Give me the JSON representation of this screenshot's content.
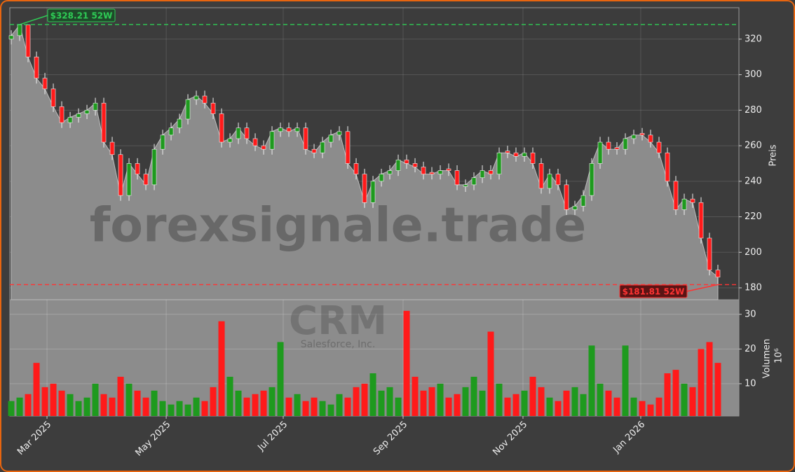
{
  "chart_data": [
    {
      "type": "candlestick",
      "watermark": "forexsignale.trade",
      "watermark_symbol": "CRM",
      "watermark_name": "Salesforce, Inc.",
      "ylabel": "Preis",
      "ylim": [
        173.3,
        337.7
      ],
      "yticks": [
        180,
        200,
        220,
        240,
        260,
        280,
        300,
        320
      ],
      "xlim": [
        -0.17,
        86.5
      ],
      "grid": true,
      "up_color": "#1e9a1e",
      "down_color": "#ff1a1a",
      "area_color": "#8c8c8c",
      "open": [
        320,
        322,
        328,
        310,
        298,
        292,
        282,
        273,
        276,
        278,
        280,
        284,
        262,
        255,
        232,
        250,
        244,
        238,
        258,
        266,
        270,
        275,
        286,
        288,
        284,
        278,
        262,
        264,
        270,
        264,
        260,
        258,
        268,
        270,
        268,
        270,
        258,
        256,
        262,
        266,
        268,
        250,
        244,
        228,
        240,
        244,
        246,
        252,
        250,
        248,
        245,
        244,
        247,
        246,
        237,
        238,
        242,
        246,
        244,
        257,
        256,
        254,
        256,
        250,
        236,
        244,
        238,
        224,
        226,
        232,
        250,
        262,
        259,
        258,
        264,
        267,
        266,
        262,
        256,
        240,
        224,
        230,
        228,
        208,
        190
      ],
      "high": [
        325,
        328.21,
        328,
        313,
        301,
        295,
        285,
        279,
        281,
        283,
        287,
        287,
        265,
        258,
        253,
        253,
        247,
        261,
        269,
        273,
        278,
        289,
        291,
        291,
        287,
        281,
        267,
        273,
        273,
        267,
        263,
        271,
        273,
        273,
        273,
        273,
        261,
        265,
        269,
        271,
        271,
        253,
        247,
        243,
        247,
        249,
        255,
        255,
        253,
        251,
        248,
        249,
        250,
        249,
        241,
        245,
        249,
        249,
        259,
        260,
        259,
        259,
        259,
        253,
        247,
        247,
        241,
        229,
        235,
        253,
        265,
        265,
        262,
        267,
        269,
        270,
        269,
        265,
        259,
        243,
        233,
        233,
        231,
        211,
        193
      ],
      "low": [
        317,
        319,
        307,
        295,
        289,
        279,
        270,
        270,
        273,
        275,
        277,
        259,
        252,
        229,
        229,
        241,
        235,
        235,
        255,
        263,
        267,
        272,
        283,
        281,
        275,
        259,
        259,
        261,
        261,
        257,
        255,
        255,
        265,
        265,
        265,
        255,
        253,
        253,
        259,
        263,
        247,
        241,
        225,
        225,
        237,
        241,
        243,
        247,
        245,
        241,
        241,
        241,
        243,
        235,
        234,
        235,
        239,
        241,
        241,
        253,
        251,
        251,
        247,
        233,
        233,
        235,
        221,
        221,
        223,
        229,
        247,
        255,
        255,
        255,
        261,
        263,
        259,
        253,
        237,
        221,
        221,
        225,
        205,
        187,
        181.81
      ],
      "close": [
        322,
        328,
        310,
        298,
        292,
        282,
        273,
        276,
        278,
        280,
        284,
        262,
        255,
        232,
        250,
        244,
        238,
        258,
        266,
        270,
        275,
        286,
        288,
        284,
        278,
        262,
        264,
        270,
        264,
        260,
        258,
        268,
        270,
        268,
        270,
        258,
        256,
        262,
        266,
        268,
        250,
        244,
        228,
        240,
        244,
        246,
        252,
        250,
        248,
        244,
        244,
        246,
        246,
        238,
        238,
        242,
        246,
        244,
        256,
        256,
        254,
        256,
        250,
        236,
        244,
        238,
        224,
        226,
        232,
        250,
        262,
        258,
        258,
        264,
        266,
        266,
        262,
        256,
        240,
        224,
        230,
        228,
        208,
        190,
        186
      ],
      "annotations": [
        {
          "value": 328.21,
          "label": "$328.21 52W",
          "color": "#2ecc55",
          "at": 1
        },
        {
          "value": 181.81,
          "label": "$181.81 52W",
          "color": "#ff3333",
          "at": 84
        }
      ]
    },
    {
      "type": "bar",
      "ylabel": "Volumen",
      "yunit": "10⁶",
      "ylim": [
        0.7,
        34.2
      ],
      "yticks": [
        10,
        20,
        30
      ],
      "grid": true,
      "xlim": [
        -0.17,
        86.5
      ],
      "xticks": [
        {
          "value": 4.25,
          "label": "Mar 2025"
        },
        {
          "value": 18.42,
          "label": "May 2025"
        },
        {
          "value": 32.33,
          "label": "Jul 2025"
        },
        {
          "value": 46.58,
          "label": "Sep 2025"
        },
        {
          "value": 60.83,
          "label": "Nov 2025"
        },
        {
          "value": 74.83,
          "label": "Jan 2026"
        }
      ],
      "values": [
        5,
        6,
        7,
        16,
        9,
        10,
        8,
        7,
        5,
        6,
        10,
        7,
        6,
        12,
        10,
        8,
        6,
        8,
        5,
        4,
        5,
        4,
        6,
        5,
        9,
        28,
        12,
        8,
        6,
        7,
        8,
        9,
        22,
        6,
        7,
        5,
        6,
        5,
        4,
        7,
        6,
        9,
        10,
        13,
        8,
        9,
        6,
        31,
        12,
        8,
        9,
        10,
        6,
        7,
        9,
        12,
        8,
        25,
        10,
        6,
        7,
        8,
        12,
        9,
        6,
        5,
        8,
        9,
        7,
        21,
        10,
        8,
        6,
        21,
        6,
        5,
        4,
        6,
        13,
        14,
        10,
        9,
        20,
        22,
        16
      ]
    }
  ]
}
